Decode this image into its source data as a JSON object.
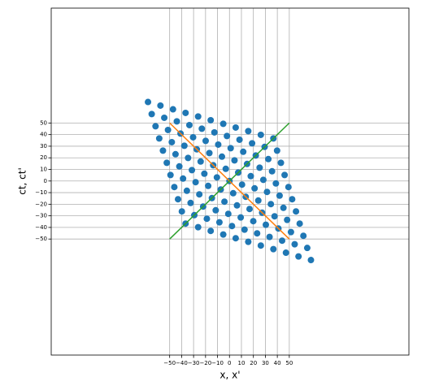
{
  "chart_data": {
    "type": "scatter",
    "xlabel": "x, x'",
    "ylabel": "ct, ct'",
    "xlim": [
      -149,
      150
    ],
    "ylim": [
      -150,
      149
    ],
    "grid": true,
    "xticks": [
      {
        "value": -50,
        "label": "−50"
      },
      {
        "value": -40,
        "label": "−40"
      },
      {
        "value": -30,
        "label": "−30"
      },
      {
        "value": -20,
        "label": "−20"
      },
      {
        "value": -10,
        "label": "−10"
      },
      0,
      10,
      20,
      30,
      40,
      50
    ],
    "yticks": [
      {
        "value": -50,
        "label": "−50"
      },
      {
        "value": -40,
        "label": "−40"
      },
      {
        "value": -30,
        "label": "−30"
      },
      {
        "value": -20,
        "label": "−20"
      },
      {
        "value": -10,
        "label": "−10"
      },
      0,
      10,
      20,
      30,
      40,
      50
    ],
    "points": {
      "color": "#1f77b4",
      "x": [
        -36.7,
        -39.8,
        -43.0,
        -46.1,
        -49.3,
        -52.4,
        -55.6,
        -58.7,
        -61.8,
        -65.0,
        -68.1,
        -26.2,
        -29.4,
        -32.5,
        -35.6,
        -38.8,
        -41.9,
        -45.1,
        -48.2,
        -51.4,
        -54.5,
        -57.7,
        -15.7,
        -18.9,
        -22.0,
        -25.2,
        -28.3,
        -31.4,
        -34.6,
        -37.7,
        -40.9,
        -44.0,
        -47.2,
        -5.2,
        -8.4,
        -11.5,
        -14.7,
        -17.8,
        -21.0,
        -24.1,
        -27.3,
        -30.4,
        -33.5,
        -36.7,
        5.2,
        2.1,
        -1.0,
        -4.2,
        -7.3,
        -10.5,
        -13.6,
        -16.8,
        -19.9,
        -23.1,
        -26.2,
        15.7,
        12.6,
        9.4,
        6.3,
        3.1,
        0,
        -3.1,
        -6.3,
        -9.4,
        -12.6,
        -15.7,
        26.2,
        23.1,
        19.9,
        16.8,
        13.6,
        10.5,
        7.3,
        4.2,
        1.0,
        -2.1,
        -5.2,
        36.7,
        33.5,
        30.4,
        27.3,
        24.1,
        21.0,
        17.8,
        14.7,
        11.5,
        8.4,
        5.2,
        47.2,
        44.0,
        40.9,
        37.7,
        34.6,
        31.4,
        28.3,
        25.2,
        22.0,
        18.9,
        15.7,
        57.7,
        54.5,
        51.4,
        48.2,
        45.1,
        41.9,
        38.8,
        35.6,
        32.5,
        29.4,
        26.2,
        68.1,
        65.0,
        61.8,
        58.7,
        55.6,
        52.4,
        49.3,
        46.1,
        43.0,
        39.8,
        36.7
      ],
      "y": [
        -36.7,
        -26.2,
        -15.7,
        -5.2,
        5.2,
        15.7,
        26.2,
        36.7,
        47.2,
        57.7,
        68.1,
        -39.8,
        -29.4,
        -18.9,
        -8.4,
        2.1,
        12.6,
        23.1,
        33.5,
        44.0,
        54.5,
        65.0,
        -43.0,
        -32.5,
        -22.0,
        -11.5,
        -1.0,
        9.4,
        19.9,
        30.4,
        40.9,
        51.4,
        61.8,
        -46.1,
        -35.6,
        -25.2,
        -14.7,
        -4.2,
        6.3,
        16.8,
        27.3,
        37.7,
        48.2,
        58.7,
        -49.3,
        -38.8,
        -28.3,
        -17.8,
        -7.3,
        3.1,
        13.6,
        24.1,
        34.6,
        45.1,
        55.6,
        -52.4,
        -41.9,
        -31.4,
        -21.0,
        -10.5,
        0,
        10.5,
        21.0,
        31.4,
        41.9,
        52.4,
        -55.6,
        -45.1,
        -34.6,
        -24.1,
        -13.6,
        -3.1,
        7.3,
        17.8,
        28.3,
        38.8,
        49.3,
        -58.7,
        -48.2,
        -37.7,
        -27.3,
        -16.8,
        -6.3,
        4.2,
        14.7,
        25.2,
        35.6,
        46.1,
        -61.8,
        -51.4,
        -40.9,
        -30.4,
        -19.9,
        -9.4,
        1.0,
        11.5,
        22.0,
        32.5,
        43.0,
        -65.0,
        -54.5,
        -44.0,
        -33.5,
        -23.1,
        -12.6,
        -2.1,
        8.4,
        18.9,
        29.4,
        39.8,
        -68.1,
        -57.7,
        -47.2,
        -36.7,
        -26.2,
        -15.7,
        -5.2,
        5.2,
        15.7,
        26.2,
        36.7
      ]
    },
    "lines": [
      {
        "color": "#ff7f0e",
        "x": [
          -50,
          50
        ],
        "y": [
          50,
          -50
        ]
      },
      {
        "color": "#2ca02c",
        "x": [
          -50,
          50
        ],
        "y": [
          -50,
          50
        ]
      }
    ]
  }
}
